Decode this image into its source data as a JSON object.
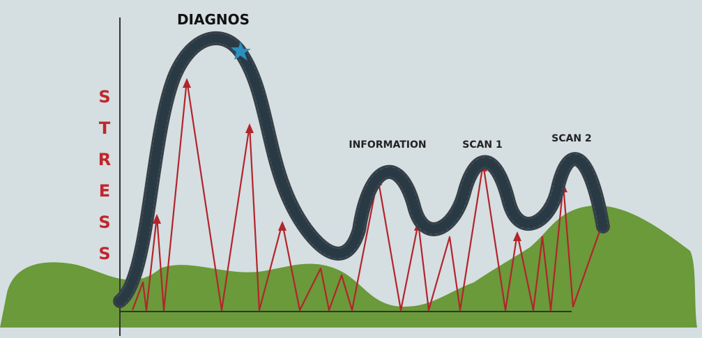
{
  "title": "DIAGNOS",
  "axis_label": "STRESS",
  "labels": [
    "INFORMATION",
    "SCAN 1",
    "SCAN 2"
  ]
}
